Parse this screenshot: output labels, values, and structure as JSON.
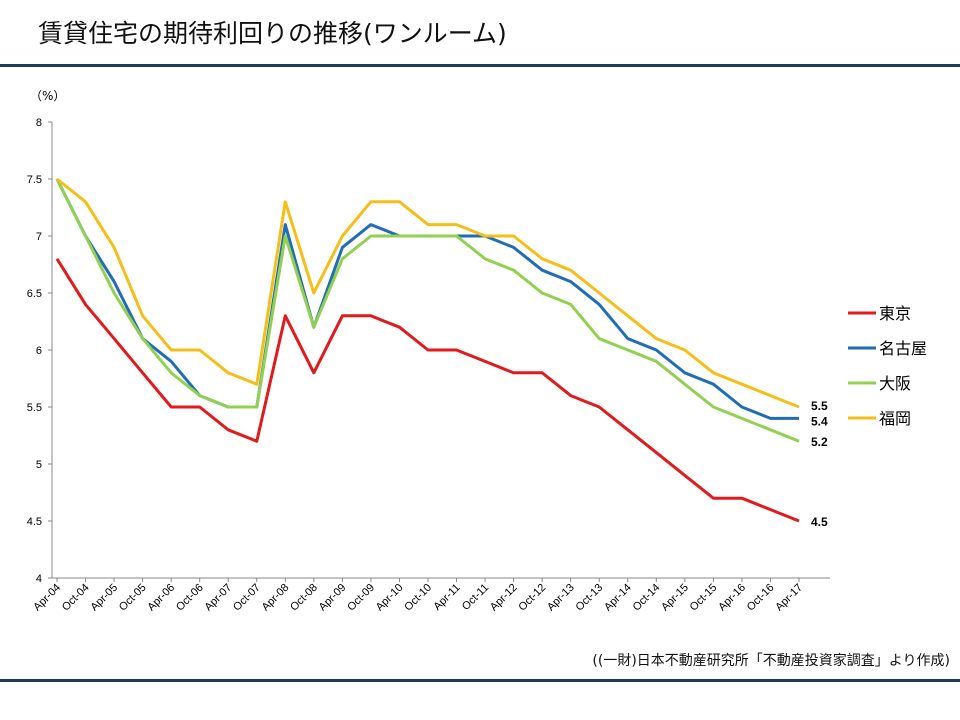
{
  "title": "賃貸住宅の期待利回りの推移(ワンルーム)",
  "source": "((一財)日本不動産研究所「不動産投資家調査」より作成)",
  "chart_data": {
    "type": "line",
    "ylabel": "（%）",
    "ylim": [
      4,
      8
    ],
    "yticks": [
      4,
      4.5,
      5,
      5.5,
      6,
      6.5,
      7,
      7.5,
      8
    ],
    "ytick_labels": [
      "4",
      "4.5",
      "5",
      "5.5",
      "6",
      "6.5",
      "7",
      "7.5",
      "8"
    ],
    "grid": false,
    "legend_position": "right",
    "categories": [
      "Apr-04",
      "Oct-04",
      "Apr-05",
      "Oct-05",
      "Apr-06",
      "Oct-06",
      "Apr-07",
      "Oct-07",
      "Apr-08",
      "Oct-08",
      "Apr-09",
      "Oct-09",
      "Apr-10",
      "Oct-10",
      "Apr-11",
      "Oct-11",
      "Apr-12",
      "Oct-12",
      "Apr-13",
      "Oct-13",
      "Apr-14",
      "Oct-14",
      "Apr-15",
      "Oct-15",
      "Apr-16",
      "Oct-16",
      "Apr-17"
    ],
    "series": [
      {
        "name": "東京",
        "color": "#e31a1c",
        "end_label": "4.5",
        "values": [
          6.8,
          6.4,
          6.1,
          5.8,
          5.5,
          5.5,
          5.3,
          5.2,
          6.3,
          5.8,
          6.3,
          6.3,
          6.2,
          6.0,
          6.0,
          5.9,
          5.8,
          5.8,
          5.6,
          5.5,
          5.3,
          5.1,
          4.9,
          4.7,
          4.7,
          4.6,
          4.5
        ]
      },
      {
        "name": "名古屋",
        "color": "#1f6eb5",
        "end_label": "5.4",
        "values": [
          7.5,
          7.0,
          6.6,
          6.1,
          5.9,
          5.6,
          5.5,
          5.5,
          7.1,
          6.2,
          6.9,
          7.1,
          7.0,
          7.0,
          7.0,
          7.0,
          6.9,
          6.7,
          6.6,
          6.4,
          6.1,
          6.0,
          5.8,
          5.7,
          5.5,
          5.4,
          5.4
        ]
      },
      {
        "name": "大阪",
        "color": "#92d050",
        "end_label": "5.2",
        "values": [
          7.5,
          7.0,
          6.5,
          6.1,
          5.8,
          5.6,
          5.5,
          5.5,
          7.0,
          6.2,
          6.8,
          7.0,
          7.0,
          7.0,
          7.0,
          6.8,
          6.7,
          6.5,
          6.4,
          6.1,
          6.0,
          5.9,
          5.7,
          5.5,
          5.4,
          5.3,
          5.2
        ]
      },
      {
        "name": "福岡",
        "color": "#f5be19",
        "end_label": "5.5",
        "values": [
          7.5,
          7.3,
          6.9,
          6.3,
          6.0,
          6.0,
          5.8,
          5.7,
          7.3,
          6.5,
          7.0,
          7.3,
          7.3,
          7.1,
          7.1,
          7.0,
          7.0,
          6.8,
          6.7,
          6.5,
          6.3,
          6.1,
          6.0,
          5.8,
          5.7,
          5.6,
          5.5
        ]
      }
    ]
  }
}
